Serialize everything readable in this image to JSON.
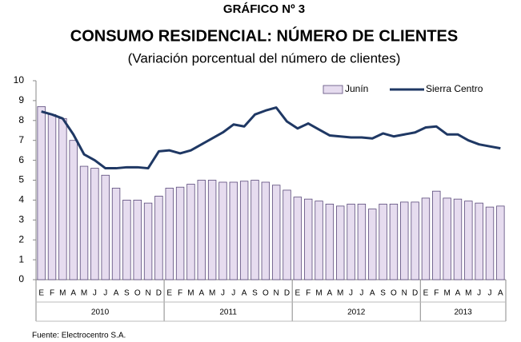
{
  "chart_data": {
    "type": "bar+line",
    "title": "GRÁFICO Nº 3",
    "subtitle": "CONSUMO RESIDENCIAL: NÚMERO DE CLIENTES",
    "subtitle2": "(Variación porcentual del número de clientes)",
    "source": "Fuente: Electrocentro S.A.",
    "categories": [
      "E",
      "F",
      "M",
      "A",
      "M",
      "J",
      "J",
      "A",
      "S",
      "O",
      "N",
      "D",
      "E",
      "F",
      "M",
      "A",
      "M",
      "J",
      "J",
      "A",
      "S",
      "O",
      "N",
      "D",
      "E",
      "F",
      "M",
      "A",
      "M",
      "J",
      "J",
      "A",
      "S",
      "O",
      "N",
      "D",
      "E",
      "F",
      "M",
      "A",
      "M",
      "J",
      "J",
      "A"
    ],
    "years": [
      "2010",
      "2011",
      "2012",
      "2013"
    ],
    "series": [
      {
        "name": "Junín",
        "type": "bar",
        "color": "#e6dcef",
        "values": [
          8.7,
          8.3,
          8.1,
          7.0,
          5.7,
          5.6,
          5.25,
          4.6,
          4.0,
          4.0,
          3.85,
          4.2,
          4.6,
          4.65,
          4.8,
          5.0,
          5.0,
          4.9,
          4.9,
          4.95,
          5.0,
          4.9,
          4.75,
          4.5,
          4.15,
          4.05,
          3.95,
          3.8,
          3.7,
          3.8,
          3.8,
          3.55,
          3.8,
          3.8,
          3.9,
          3.9,
          4.1,
          4.45,
          4.1,
          4.05,
          3.95,
          3.85,
          3.65,
          3.7
        ]
      },
      {
        "name": "Sierra Centro",
        "type": "line",
        "color": "#1f3864",
        "values": [
          8.45,
          8.3,
          8.1,
          7.3,
          6.3,
          6.0,
          5.6,
          5.6,
          5.65,
          5.65,
          5.6,
          6.45,
          6.5,
          6.35,
          6.5,
          6.8,
          7.1,
          7.4,
          7.8,
          7.7,
          8.3,
          8.5,
          8.65,
          7.95,
          7.6,
          7.85,
          7.55,
          7.25,
          7.2,
          7.15,
          7.15,
          7.1,
          7.35,
          7.2,
          7.3,
          7.4,
          7.65,
          7.7,
          7.3,
          7.3,
          7.0,
          6.8,
          6.7,
          6.6
        ]
      }
    ],
    "ylim": [
      0,
      10
    ],
    "yticks": [
      0,
      1,
      2,
      3,
      4,
      5,
      6,
      7,
      8,
      9,
      10
    ],
    "grid": false,
    "legend": "top-right"
  }
}
